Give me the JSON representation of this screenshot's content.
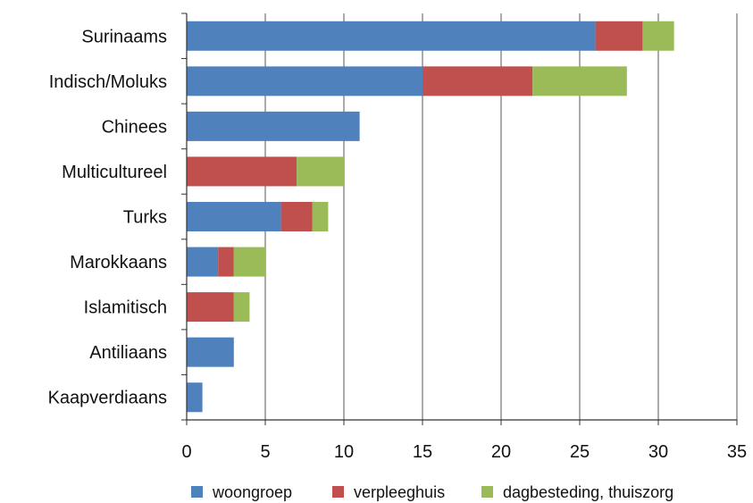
{
  "chart_data": {
    "type": "bar",
    "orientation": "horizontal",
    "stacked": true,
    "categories": [
      "Surinaams",
      "Indisch/Moluks",
      "Chinees",
      "Multicultureel",
      "Turks",
      "Marokkaans",
      "Islamitisch",
      "Antiliaans",
      "Kaapverdiaans"
    ],
    "series": [
      {
        "name": "woongroep",
        "color": "#4f81bd",
        "values": [
          26,
          15,
          11,
          0,
          6,
          2,
          0,
          3,
          1
        ]
      },
      {
        "name": "verpleeghuis",
        "color": "#c0504d",
        "values": [
          3,
          7,
          0,
          7,
          2,
          1,
          3,
          0,
          0
        ]
      },
      {
        "name": "dagbesteding, thuiszorg",
        "color": "#9bbb59",
        "values": [
          2,
          6,
          0,
          3,
          1,
          2,
          1,
          0,
          0
        ]
      }
    ],
    "xlim": [
      0,
      35
    ],
    "x_ticks": [
      0,
      5,
      10,
      15,
      20,
      25,
      30,
      35
    ],
    "xlabel": "",
    "ylabel": "",
    "title": "",
    "grid": "vertical",
    "legend_position": "bottom"
  }
}
